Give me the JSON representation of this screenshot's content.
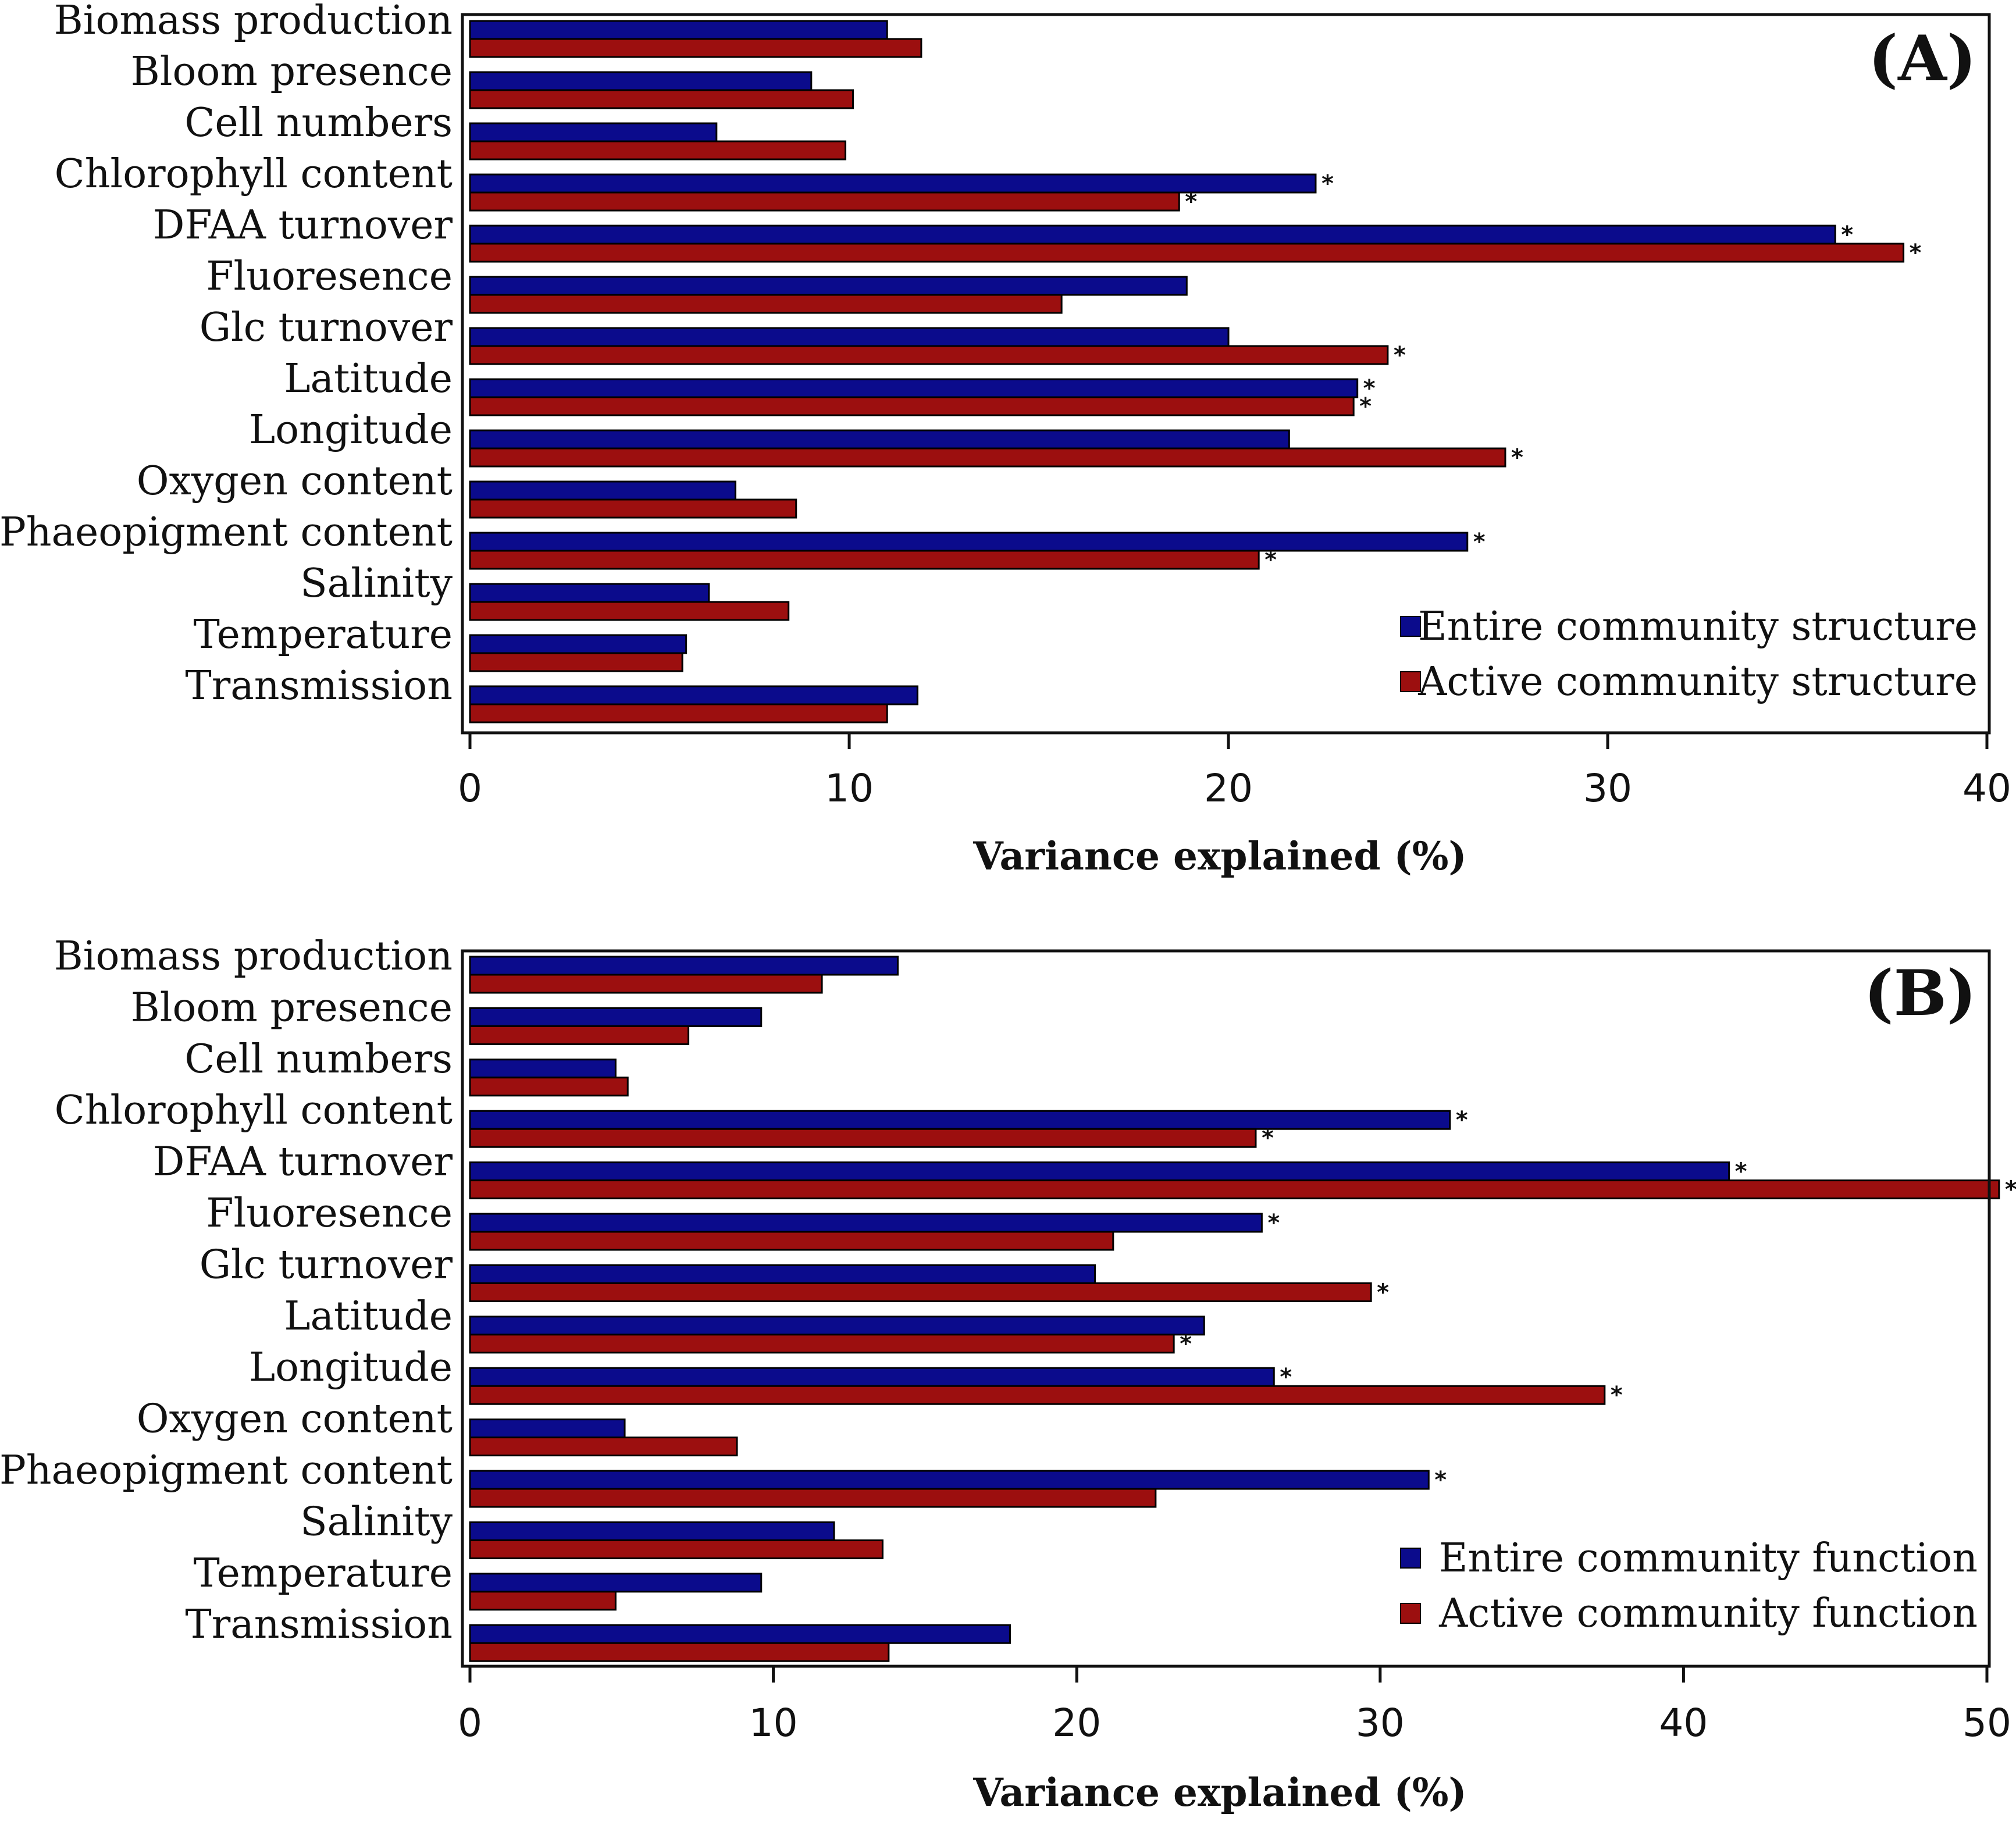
{
  "colors": {
    "entire": "#0b0b8c",
    "active": "#9c0f0f",
    "axis": "#111111"
  },
  "chart_data": [
    {
      "type": "bar",
      "orientation": "horizontal",
      "panel_label": "(A)",
      "xlabel": "Variance explained (%)",
      "xlim": [
        0,
        40
      ],
      "xticks": [
        0,
        10,
        20,
        30,
        40
      ],
      "categories": [
        "Biomass production",
        "Bloom presence",
        "Cell numbers",
        "Chlorophyll content",
        "DFAA turnover",
        "Fluoresence",
        "Glc turnover",
        "Latitude",
        "Longitude",
        "Oxygen content",
        "Phaeopigment content",
        "Salinity",
        "Temperature",
        "Transmission"
      ],
      "series": [
        {
          "name": "Entire community structure",
          "values": [
            11.0,
            9.0,
            6.5,
            22.3,
            36.0,
            18.9,
            20.0,
            23.4,
            21.6,
            7.0,
            26.3,
            6.3,
            5.7,
            11.8
          ],
          "significant": [
            false,
            false,
            false,
            true,
            true,
            false,
            false,
            true,
            false,
            false,
            true,
            false,
            false,
            false
          ]
        },
        {
          "name": "Active community structure",
          "values": [
            11.9,
            10.1,
            9.9,
            18.7,
            37.8,
            15.6,
            24.2,
            23.3,
            27.3,
            8.6,
            20.8,
            8.4,
            5.6,
            11.0
          ],
          "significant": [
            false,
            false,
            false,
            true,
            true,
            false,
            true,
            true,
            true,
            false,
            true,
            false,
            false,
            false
          ]
        }
      ],
      "legend_position": "bottom-right",
      "significance_marker": "*"
    },
    {
      "type": "bar",
      "orientation": "horizontal",
      "panel_label": "(B)",
      "xlabel": "Variance explained (%)",
      "xlim": [
        0,
        50
      ],
      "xticks": [
        0,
        10,
        20,
        30,
        40,
        50
      ],
      "categories": [
        "Biomass production",
        "Bloom presence",
        "Cell numbers",
        "Chlorophyll content",
        "DFAA turnover",
        "Fluoresence",
        "Glc turnover",
        "Latitude",
        "Longitude",
        "Oxygen content",
        "Phaeopigment content",
        "Salinity",
        "Temperature",
        "Transmission"
      ],
      "series": [
        {
          "name": "Entire community function",
          "values": [
            14.1,
            9.6,
            4.8,
            32.3,
            41.5,
            26.1,
            20.6,
            24.2,
            26.5,
            5.1,
            31.6,
            12.0,
            9.6,
            17.8
          ],
          "significant": [
            false,
            false,
            false,
            true,
            true,
            true,
            false,
            false,
            true,
            false,
            true,
            false,
            false,
            false
          ]
        },
        {
          "name": "Active community function",
          "values": [
            11.6,
            7.2,
            5.2,
            25.9,
            50.4,
            21.2,
            29.7,
            23.2,
            37.4,
            8.8,
            22.6,
            13.6,
            4.8,
            13.8
          ],
          "significant": [
            false,
            false,
            false,
            true,
            true,
            false,
            true,
            true,
            true,
            false,
            false,
            false,
            false,
            false
          ]
        }
      ],
      "legend_position": "bottom-right",
      "significance_marker": "*"
    }
  ]
}
